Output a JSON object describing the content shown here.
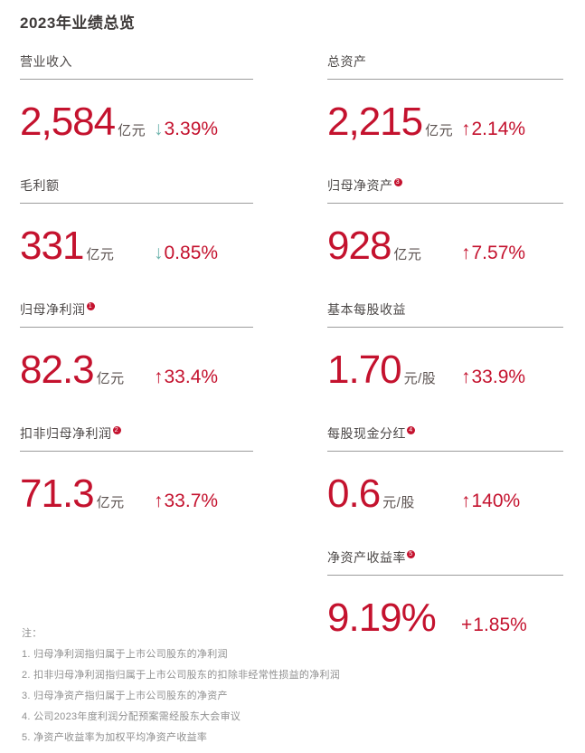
{
  "page": {
    "title": "2023年业绩总览"
  },
  "colors": {
    "accent_red": "#C4122E",
    "down_arrow_teal": "#6FB5AE",
    "label_gray": "#4D4948",
    "note_gray": "#8F8F8F"
  },
  "metrics": {
    "left": [
      {
        "label": "营业收入",
        "sup": "",
        "value": "2,584",
        "unit": "亿元",
        "arrow": "↓",
        "change": "3.39%",
        "direction": "down"
      },
      {
        "label": "毛利额",
        "sup": "",
        "value": "331",
        "unit": "亿元",
        "arrow": "↓",
        "change": "0.85%",
        "direction": "down"
      },
      {
        "label": "归母净利润",
        "sup": "1",
        "value": "82.3",
        "unit": "亿元",
        "arrow": "↑",
        "change": "33.4%",
        "direction": "up"
      },
      {
        "label": "扣非归母净利润",
        "sup": "2",
        "value": "71.3",
        "unit": "亿元",
        "arrow": "↑",
        "change": "33.7%",
        "direction": "up"
      }
    ],
    "right": [
      {
        "label": "总资产",
        "sup": "",
        "value": "2,215",
        "unit": "亿元",
        "arrow": "↑",
        "change": "2.14%",
        "direction": "up"
      },
      {
        "label": "归母净资产",
        "sup": "3",
        "value": "928",
        "unit": "亿元",
        "arrow": "↑",
        "change": "7.57%",
        "direction": "up"
      },
      {
        "label": "基本每股收益",
        "sup": "",
        "value": "1.70",
        "unit": "元/股",
        "arrow": "↑",
        "change": "33.9%",
        "direction": "up"
      },
      {
        "label": "每股现金分红",
        "sup": "4",
        "value": "0.6",
        "unit": "元/股",
        "arrow": "↑",
        "change": "140%",
        "direction": "up"
      },
      {
        "label": "净资产收益率",
        "sup": "5",
        "value": "9.19%",
        "unit": "",
        "arrow": "+",
        "change": "1.85%",
        "direction": "plus"
      }
    ]
  },
  "notes": {
    "heading": "注：",
    "items": [
      "1. 归母净利润指归属于上市公司股东的净利润",
      "2. 扣非归母净利润指归属于上市公司股东的扣除非经常性损益的净利润",
      "3. 归母净资产指归属于上市公司股东的净资产",
      "4. 公司2023年度利润分配预案需经股东大会审议",
      "5. 净资产收益率为加权平均净资产收益率"
    ]
  }
}
